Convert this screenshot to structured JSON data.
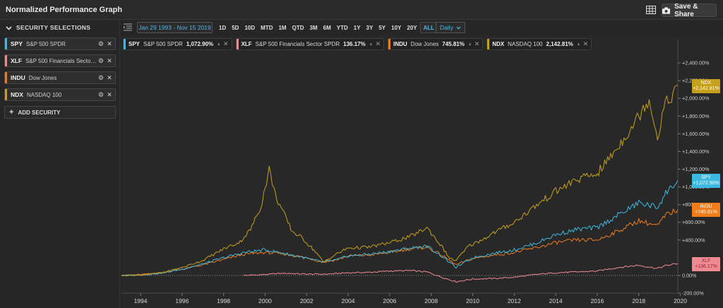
{
  "app": {
    "title": "Normalized Performance Graph",
    "save_label": "Save & Share"
  },
  "sidebar": {
    "header": "SECURITY SELECTIONS",
    "items": [
      {
        "symbol": "SPY",
        "name": "S&P 500 SPDR",
        "color": "#3db8e0"
      },
      {
        "symbol": "XLF",
        "name": "S&P 500 Financials Sector S...",
        "color": "#f08a92"
      },
      {
        "symbol": "INDU",
        "name": "Dow Jones",
        "color": "#f07d1a"
      },
      {
        "symbol": "NDX",
        "name": "NASDAQ 100",
        "color": "#c6a01c"
      }
    ],
    "add_label": "ADD SECURITY"
  },
  "toolbar": {
    "date_range": "Jan 29 1993 - Nov 15 2019",
    "periods": [
      "1D",
      "5D",
      "10D",
      "MTD",
      "1M",
      "QTD",
      "3M",
      "6M",
      "YTD",
      "1Y",
      "3Y",
      "5Y",
      "10Y",
      "20Y",
      "ALL"
    ],
    "active_period": "ALL",
    "frequency": "Daily"
  },
  "legend": [
    {
      "symbol": "SPY",
      "name": "S&P 500 SPDR",
      "pct": "1,072.90%",
      "color": "#3db8e0"
    },
    {
      "symbol": "XLF",
      "name": "S&P 500 Financials Sector SPDR",
      "pct": "136.17%",
      "color": "#f08a92"
    },
    {
      "symbol": "INDU",
      "name": "Dow Jones",
      "pct": "745.81%",
      "color": "#f07d1a"
    },
    {
      "symbol": "NDX",
      "name": "NASDAQ 100",
      "pct": "2,142.81%",
      "color": "#c6a01c"
    }
  ],
  "end_labels": [
    {
      "symbol": "NDX",
      "value": "+2,142.81%",
      "color": "#c6a01c",
      "text_color": "#ffffff"
    },
    {
      "symbol": "SPY",
      "value": "+1,072.90%",
      "color": "#3db8e0",
      "text_color": "#ffffff"
    },
    {
      "symbol": "INDU",
      "value": "+745.81%",
      "color": "#f07d1a",
      "text_color": "#ffffff"
    },
    {
      "symbol": "XLF",
      "value": "+136.17%",
      "color": "#f08a92",
      "text_color": "#8a2a34"
    }
  ],
  "chart_data": {
    "type": "line",
    "title": "",
    "xlabel": "",
    "ylabel": "",
    "xlim": [
      1993.08,
      2019.88
    ],
    "ylim": [
      -200,
      2600
    ],
    "y_ticks": [
      -200,
      0,
      400,
      600,
      800,
      1000,
      1200,
      1400,
      1600,
      1800,
      2000,
      2200,
      2400
    ],
    "y_tick_labels": [
      "-200.00%",
      "0.00%",
      "+400.00%",
      "+600.00%",
      "+800.00%",
      "+1,000.00%",
      "+1,200.00%",
      "+1,400.00%",
      "+1,600.00%",
      "+1,800.00%",
      "+2,000.00%",
      "+2,200.00%",
      "+2,400.00%"
    ],
    "x_ticks": [
      1994,
      1996,
      1998,
      2000,
      2002,
      2004,
      2006,
      2008,
      2010,
      2012,
      2014,
      2016,
      2018,
      2020
    ],
    "x_tick_labels": [
      "1994",
      "1996",
      "1998",
      "2000",
      "2002",
      "2004",
      "2006",
      "2008",
      "2010",
      "2012",
      "2014",
      "2016",
      "2018",
      "2020"
    ],
    "grid": false,
    "series": [
      {
        "name": "NDX",
        "color": "#c6a01c",
        "x": [
          1993.08,
          1994,
          1995,
          1996,
          1997,
          1998,
          1998.8,
          1999.3,
          1999.8,
          2000.2,
          2000.5,
          2000.9,
          2001.3,
          2001.8,
          2002.5,
          2002.8,
          2003.5,
          2004,
          2005,
          2006,
          2007,
          2007.8,
          2008.5,
          2008.9,
          2009.2,
          2009.8,
          2010.5,
          2011,
          2012,
          2013,
          2014,
          2015,
          2016,
          2017,
          2018,
          2018.5,
          2018.9,
          2019.2,
          2019.5,
          2019.88
        ],
        "y": [
          0,
          5,
          30,
          90,
          170,
          300,
          380,
          520,
          780,
          1200,
          900,
          700,
          500,
          420,
          250,
          150,
          250,
          310,
          320,
          370,
          440,
          540,
          330,
          190,
          170,
          330,
          410,
          480,
          600,
          780,
          950,
          1080,
          1150,
          1450,
          1800,
          2000,
          1550,
          1900,
          2000,
          2143
        ]
      },
      {
        "name": "SPY",
        "color": "#3db8e0",
        "x": [
          1993.08,
          1994,
          1995,
          1996,
          1997,
          1998,
          1999,
          2000,
          2000.7,
          2001.5,
          2002.8,
          2003.5,
          2004,
          2005,
          2006,
          2007,
          2007.8,
          2008.5,
          2009.2,
          2010,
          2011,
          2012,
          2013,
          2014,
          2015,
          2016,
          2017,
          2018,
          2018.9,
          2019.3,
          2019.88
        ],
        "y": [
          0,
          5,
          25,
          70,
          130,
          200,
          260,
          290,
          260,
          220,
          150,
          180,
          220,
          240,
          270,
          310,
          330,
          220,
          90,
          200,
          250,
          290,
          360,
          460,
          520,
          540,
          680,
          820,
          770,
          930,
          1073
        ]
      },
      {
        "name": "INDU",
        "color": "#f07d1a",
        "x": [
          1993.08,
          1994,
          1995,
          1996,
          1997,
          1998,
          1999,
          2000,
          2001,
          2002,
          2002.8,
          2003.5,
          2004,
          2005,
          2006,
          2007,
          2007.8,
          2008.5,
          2009.2,
          2010,
          2011,
          2012,
          2013,
          2014,
          2015,
          2016,
          2017,
          2018,
          2018.9,
          2019.3,
          2019.88
        ],
        "y": [
          0,
          10,
          30,
          70,
          120,
          180,
          240,
          260,
          240,
          200,
          150,
          180,
          220,
          230,
          260,
          300,
          320,
          230,
          120,
          190,
          230,
          260,
          310,
          370,
          400,
          400,
          500,
          620,
          560,
          680,
          746
        ]
      },
      {
        "name": "XLF",
        "color": "#f08a92",
        "x": [
          1998.96,
          1999.5,
          2000,
          2000.5,
          2001,
          2002,
          2003,
          2004,
          2005,
          2006,
          2007,
          2007.8,
          2008.5,
          2009.2,
          2010,
          2011,
          2012,
          2013,
          2014,
          2015,
          2016,
          2017,
          2018,
          2018.9,
          2019.3,
          2019.88
        ],
        "y": [
          0,
          5,
          10,
          20,
          25,
          15,
          15,
          30,
          35,
          50,
          55,
          40,
          -20,
          -70,
          -40,
          -35,
          -20,
          10,
          30,
          40,
          50,
          90,
          115,
          80,
          110,
          136
        ]
      }
    ]
  }
}
